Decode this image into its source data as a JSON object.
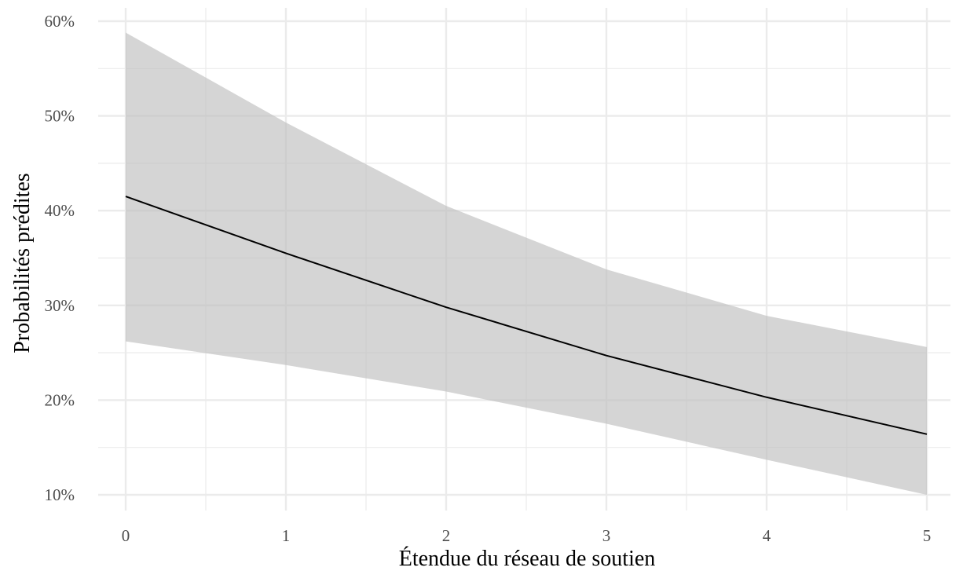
{
  "chart_data": {
    "type": "line",
    "title": "",
    "xlabel": "Étendue du réseau de soutien",
    "ylabel": "Probabilités prédites",
    "xlim": [
      0,
      5
    ],
    "ylim": [
      0.1,
      0.6
    ],
    "x_ticks": [
      0,
      1,
      2,
      3,
      4,
      5
    ],
    "x_tick_labels": [
      "0",
      "1",
      "2",
      "3",
      "4",
      "5"
    ],
    "y_ticks": [
      0.1,
      0.2,
      0.3,
      0.4,
      0.5,
      0.6
    ],
    "y_tick_labels": [
      "10%",
      "20%",
      "30%",
      "40%",
      "50%",
      "60%"
    ],
    "grid": true,
    "legend": "none",
    "colors": {
      "line": "#000000",
      "ribbon": "#bfbfbf",
      "grid": "#ebebeb"
    },
    "series": [
      {
        "x": [
          0,
          1,
          2,
          3,
          4,
          5
        ],
        "values": [
          0.415,
          0.355,
          0.298,
          0.247,
          0.203,
          0.164
        ],
        "lower": [
          0.262,
          0.237,
          0.209,
          0.175,
          0.137,
          0.1
        ],
        "upper": [
          0.588,
          0.493,
          0.405,
          0.338,
          0.289,
          0.256
        ]
      }
    ]
  }
}
